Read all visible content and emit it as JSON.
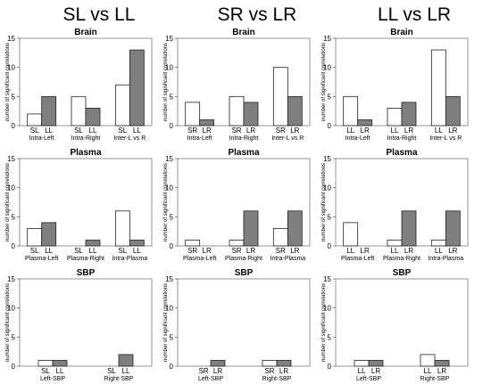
{
  "columns": [
    "SL vs LL",
    "SR vs LR",
    "LL vs LR"
  ],
  "y_axis_label": "number of significant correlations",
  "chart_data": [
    {
      "type": "bar",
      "column": 0,
      "title": "Brain",
      "ylim": [
        0,
        15
      ],
      "yticks": [
        0,
        5,
        10,
        15
      ],
      "categories": [
        "Intra-Left",
        "Intra-Right",
        "Inter-L vs R"
      ],
      "series": [
        {
          "name": "SL",
          "color": "#ffffff",
          "values": [
            2,
            5,
            7
          ]
        },
        {
          "name": "LL",
          "color": "#7f7f7f",
          "values": [
            5,
            3,
            13
          ]
        }
      ],
      "series_labels_shown_at": [
        0
      ]
    },
    {
      "type": "bar",
      "column": 1,
      "title": "Brain",
      "ylim": [
        0,
        15
      ],
      "yticks": [
        0,
        5,
        10,
        15
      ],
      "categories": [
        "Intra-Left",
        "Intra-Right",
        "Inter-L vs R"
      ],
      "series": [
        {
          "name": "SR",
          "color": "#ffffff",
          "values": [
            4,
            5,
            10
          ]
        },
        {
          "name": "LR",
          "color": "#7f7f7f",
          "values": [
            1,
            4,
            5
          ]
        }
      ],
      "series_labels_shown_at": [
        0
      ]
    },
    {
      "type": "bar",
      "column": 2,
      "title": "Brain",
      "ylim": [
        0,
        15
      ],
      "yticks": [
        0,
        5,
        10,
        15
      ],
      "categories": [
        "Intra-Left",
        "Intra-Right",
        "Inter-L vs R"
      ],
      "series": [
        {
          "name": "LL",
          "color": "#ffffff",
          "values": [
            5,
            3,
            13
          ]
        },
        {
          "name": "LR",
          "color": "#7f7f7f",
          "values": [
            1,
            4,
            5
          ]
        }
      ],
      "series_labels_shown_at": [
        0
      ]
    },
    {
      "type": "bar",
      "column": 0,
      "title": "Plasma",
      "ylim": [
        0,
        15
      ],
      "yticks": [
        0,
        5,
        10,
        15
      ],
      "categories": [
        "Plasma-Left",
        "Plasma-Right",
        "Intra-Plasma"
      ],
      "series": [
        {
          "name": "SL",
          "color": "#ffffff",
          "values": [
            3,
            0,
            6
          ]
        },
        {
          "name": "LL",
          "color": "#7f7f7f",
          "values": [
            4,
            1,
            1
          ]
        }
      ],
      "series_labels_shown_at": [
        0
      ]
    },
    {
      "type": "bar",
      "column": 1,
      "title": "Plasma",
      "ylim": [
        0,
        15
      ],
      "yticks": [
        0,
        5,
        10,
        15
      ],
      "categories": [
        "Plasma-Left",
        "Plasma-Right",
        "Intra-Plasma"
      ],
      "series": [
        {
          "name": "SR",
          "color": "#ffffff",
          "values": [
            1,
            1,
            3
          ]
        },
        {
          "name": "LR",
          "color": "#7f7f7f",
          "values": [
            0,
            6,
            6
          ]
        }
      ],
      "series_labels_shown_at": [
        0
      ]
    },
    {
      "type": "bar",
      "column": 2,
      "title": "Plasma",
      "ylim": [
        0,
        15
      ],
      "yticks": [
        0,
        5,
        10,
        15
      ],
      "categories": [
        "Plasma-Left",
        "Plasma-Right",
        "Intra-Plasma"
      ],
      "series": [
        {
          "name": "LL",
          "color": "#ffffff",
          "values": [
            4,
            1,
            1
          ]
        },
        {
          "name": "LR",
          "color": "#7f7f7f",
          "values": [
            0,
            6,
            6
          ]
        }
      ],
      "series_labels_shown_at": [
        0
      ]
    },
    {
      "type": "bar",
      "column": 0,
      "title": "SBP",
      "ylim": [
        0,
        15
      ],
      "yticks": [
        0,
        5,
        10,
        15
      ],
      "categories": [
        "Left-SBP",
        "Right-SBP"
      ],
      "series": [
        {
          "name": "SL",
          "color": "#ffffff",
          "values": [
            1,
            0
          ]
        },
        {
          "name": "LL",
          "color": "#7f7f7f",
          "values": [
            1,
            2
          ]
        }
      ],
      "series_labels_shown_at": [
        0,
        1
      ]
    },
    {
      "type": "bar",
      "column": 1,
      "title": "SBP",
      "ylim": [
        0,
        15
      ],
      "yticks": [
        0,
        5,
        10,
        15
      ],
      "categories": [
        "Left-SBP",
        "Right-SBP"
      ],
      "series": [
        {
          "name": "SR",
          "color": "#ffffff",
          "values": [
            0,
            1
          ]
        },
        {
          "name": "LR",
          "color": "#7f7f7f",
          "values": [
            1,
            1
          ]
        }
      ],
      "series_labels_shown_at": [
        0,
        1
      ]
    },
    {
      "type": "bar",
      "column": 2,
      "title": "SBP",
      "ylim": [
        0,
        15
      ],
      "yticks": [
        0,
        5,
        10,
        15
      ],
      "categories": [
        "Left-SBP",
        "Right-SBP"
      ],
      "series": [
        {
          "name": "LL",
          "color": "#ffffff",
          "values": [
            1,
            2
          ]
        },
        {
          "name": "LR",
          "color": "#7f7f7f",
          "values": [
            1,
            1
          ]
        }
      ],
      "series_labels_shown_at": [
        0,
        1
      ]
    }
  ]
}
